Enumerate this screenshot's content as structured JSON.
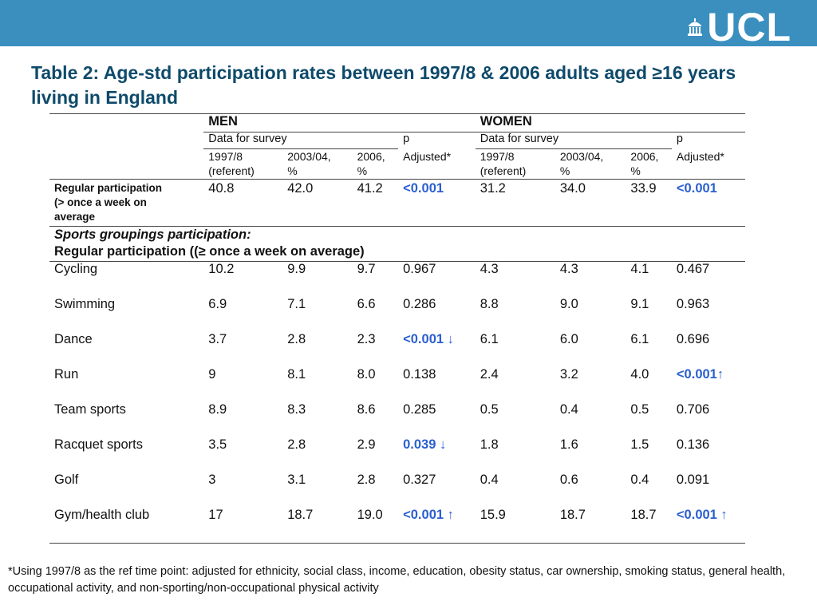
{
  "title": "Table 2: Age-std participation rates between 1997/8 & 2006 adults aged ≥16 years living in England",
  "logo_text": "UCL",
  "table": {
    "men_label": "MEN",
    "women_label": "WOMEN",
    "data_for_survey": "Data for survey",
    "p_label": "p",
    "adjusted_label": "Adjusted*",
    "years": [
      "1997/8",
      "2003/04,",
      "2006,"
    ],
    "year_sub": [
      "(referent)",
      "%",
      "%"
    ],
    "regular": {
      "label_lines": [
        "Regular participation",
        "(> once a week on",
        "average"
      ],
      "values": [
        "40.8",
        "42.0",
        "41.2",
        "<0.001",
        "31.2",
        "34.0",
        "33.9",
        "<0.001"
      ]
    },
    "group_title": "Sports groupings participation:",
    "group_subtitle": "Regular participation ((≥ once a week on average)",
    "rows": [
      {
        "sport": "Cycling",
        "values": [
          "10.2",
          "9.9",
          "9.7",
          "0.967",
          "4.3",
          "4.3",
          "4.1",
          "0.467"
        ]
      },
      {
        "sport": "Swimming",
        "values": [
          "6.9",
          "7.1",
          "6.6",
          "0.286",
          "8.8",
          "9.0",
          "9.1",
          "0.963"
        ]
      },
      {
        "sport": "Dance",
        "values": [
          "3.7",
          "2.8",
          "2.3",
          "<0.001 ↓",
          "6.1",
          "6.0",
          "6.1",
          "0.696"
        ]
      },
      {
        "sport": "Run",
        "values": [
          "9",
          "8.1",
          "8.0",
          "0.138",
          "2.4",
          "3.2",
          "4.0",
          "<0.001↑"
        ]
      },
      {
        "sport": "Team sports",
        "values": [
          "8.9",
          "8.3",
          "8.6",
          "0.285",
          "0.5",
          "0.4",
          "0.5",
          "0.706"
        ]
      },
      {
        "sport": "Racquet sports",
        "values": [
          "3.5",
          "2.8",
          "2.9",
          "0.039 ↓",
          "1.8",
          "1.6",
          "1.5",
          "0.136"
        ]
      },
      {
        "sport": "Golf",
        "values": [
          "3",
          "3.1",
          "2.8",
          "0.327",
          "0.4",
          "0.6",
          "0.4",
          "0.091"
        ]
      },
      {
        "sport": "Gym/health club",
        "values": [
          "17",
          "18.7",
          "19.0",
          "<0.001 ↑",
          "15.9",
          "18.7",
          "18.7",
          "<0.001 ↑"
        ]
      }
    ]
  },
  "footnote": "*Using 1997/8 as the ref time point: adjusted for ethnicity, social class, income, education, obesity status, car ownership, smoking status, general health, occupational activity, and non-sporting/non-occupational physical activity",
  "colors": {
    "header_bar": "#3a8fbf",
    "title": "#0e4a6b",
    "significant": "#2a5fd0"
  }
}
